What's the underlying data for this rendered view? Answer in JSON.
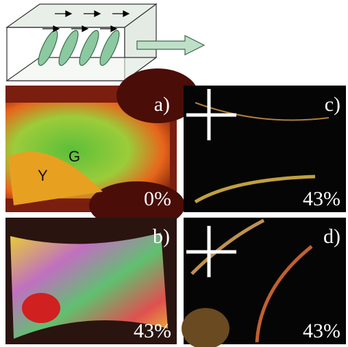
{
  "panels": [
    {
      "label": "a)",
      "percent": "0%",
      "annotations": [
        "G",
        "Y"
      ]
    },
    {
      "label": "b)",
      "percent": "43%"
    },
    {
      "label": "c)",
      "percent": "43%"
    },
    {
      "label": "d)",
      "percent": "43%"
    }
  ]
}
